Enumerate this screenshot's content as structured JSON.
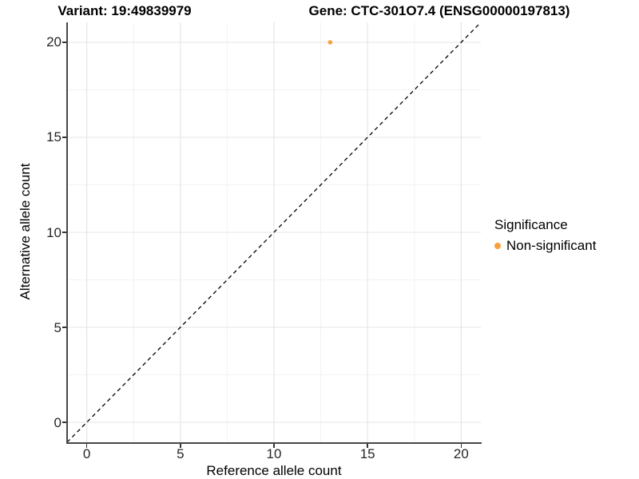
{
  "figure": {
    "title_left": "Variant: 19:49839979",
    "title_right": "Gene: CTC-301O7.4 (ENSG00000197813)"
  },
  "chart_data": {
    "type": "scatter",
    "title": "Variant: 19:49839979  /  Gene: CTC-301O7.4 (ENSG00000197813)",
    "xlabel": "Reference allele count",
    "ylabel": "Alternative allele count",
    "xlim": [
      -1.05,
      21.05
    ],
    "ylim": [
      -1.05,
      21.05
    ],
    "xticks": [
      0,
      5,
      10,
      15,
      20
    ],
    "yticks": [
      0,
      5,
      10,
      15,
      20
    ],
    "xminor": [
      2.5,
      7.5,
      12.5,
      17.5
    ],
    "yminor": [
      2.5,
      7.5,
      12.5,
      17.5
    ],
    "grid": "major+minor",
    "series": [
      {
        "name": "Non-significant",
        "color": "#F9A03F",
        "points": [
          {
            "x": 13,
            "y": 20
          }
        ]
      }
    ],
    "reference_line": {
      "type": "identity",
      "slope": 1,
      "intercept": 0,
      "style": "dashed",
      "color": "#000000"
    },
    "legend": {
      "title": "Significance",
      "position": "right",
      "items": [
        {
          "label": "Non-significant",
          "color": "#F9A03F",
          "marker": "circle"
        }
      ]
    }
  },
  "colors": {
    "background": "#FFFFFF",
    "axis_line": "#474747",
    "tick_mark": "#343434",
    "tick_label": "#262626",
    "grid_major": "#E4E4E4",
    "grid_minor": "#F2F2F2",
    "point": "#F9A03F"
  }
}
